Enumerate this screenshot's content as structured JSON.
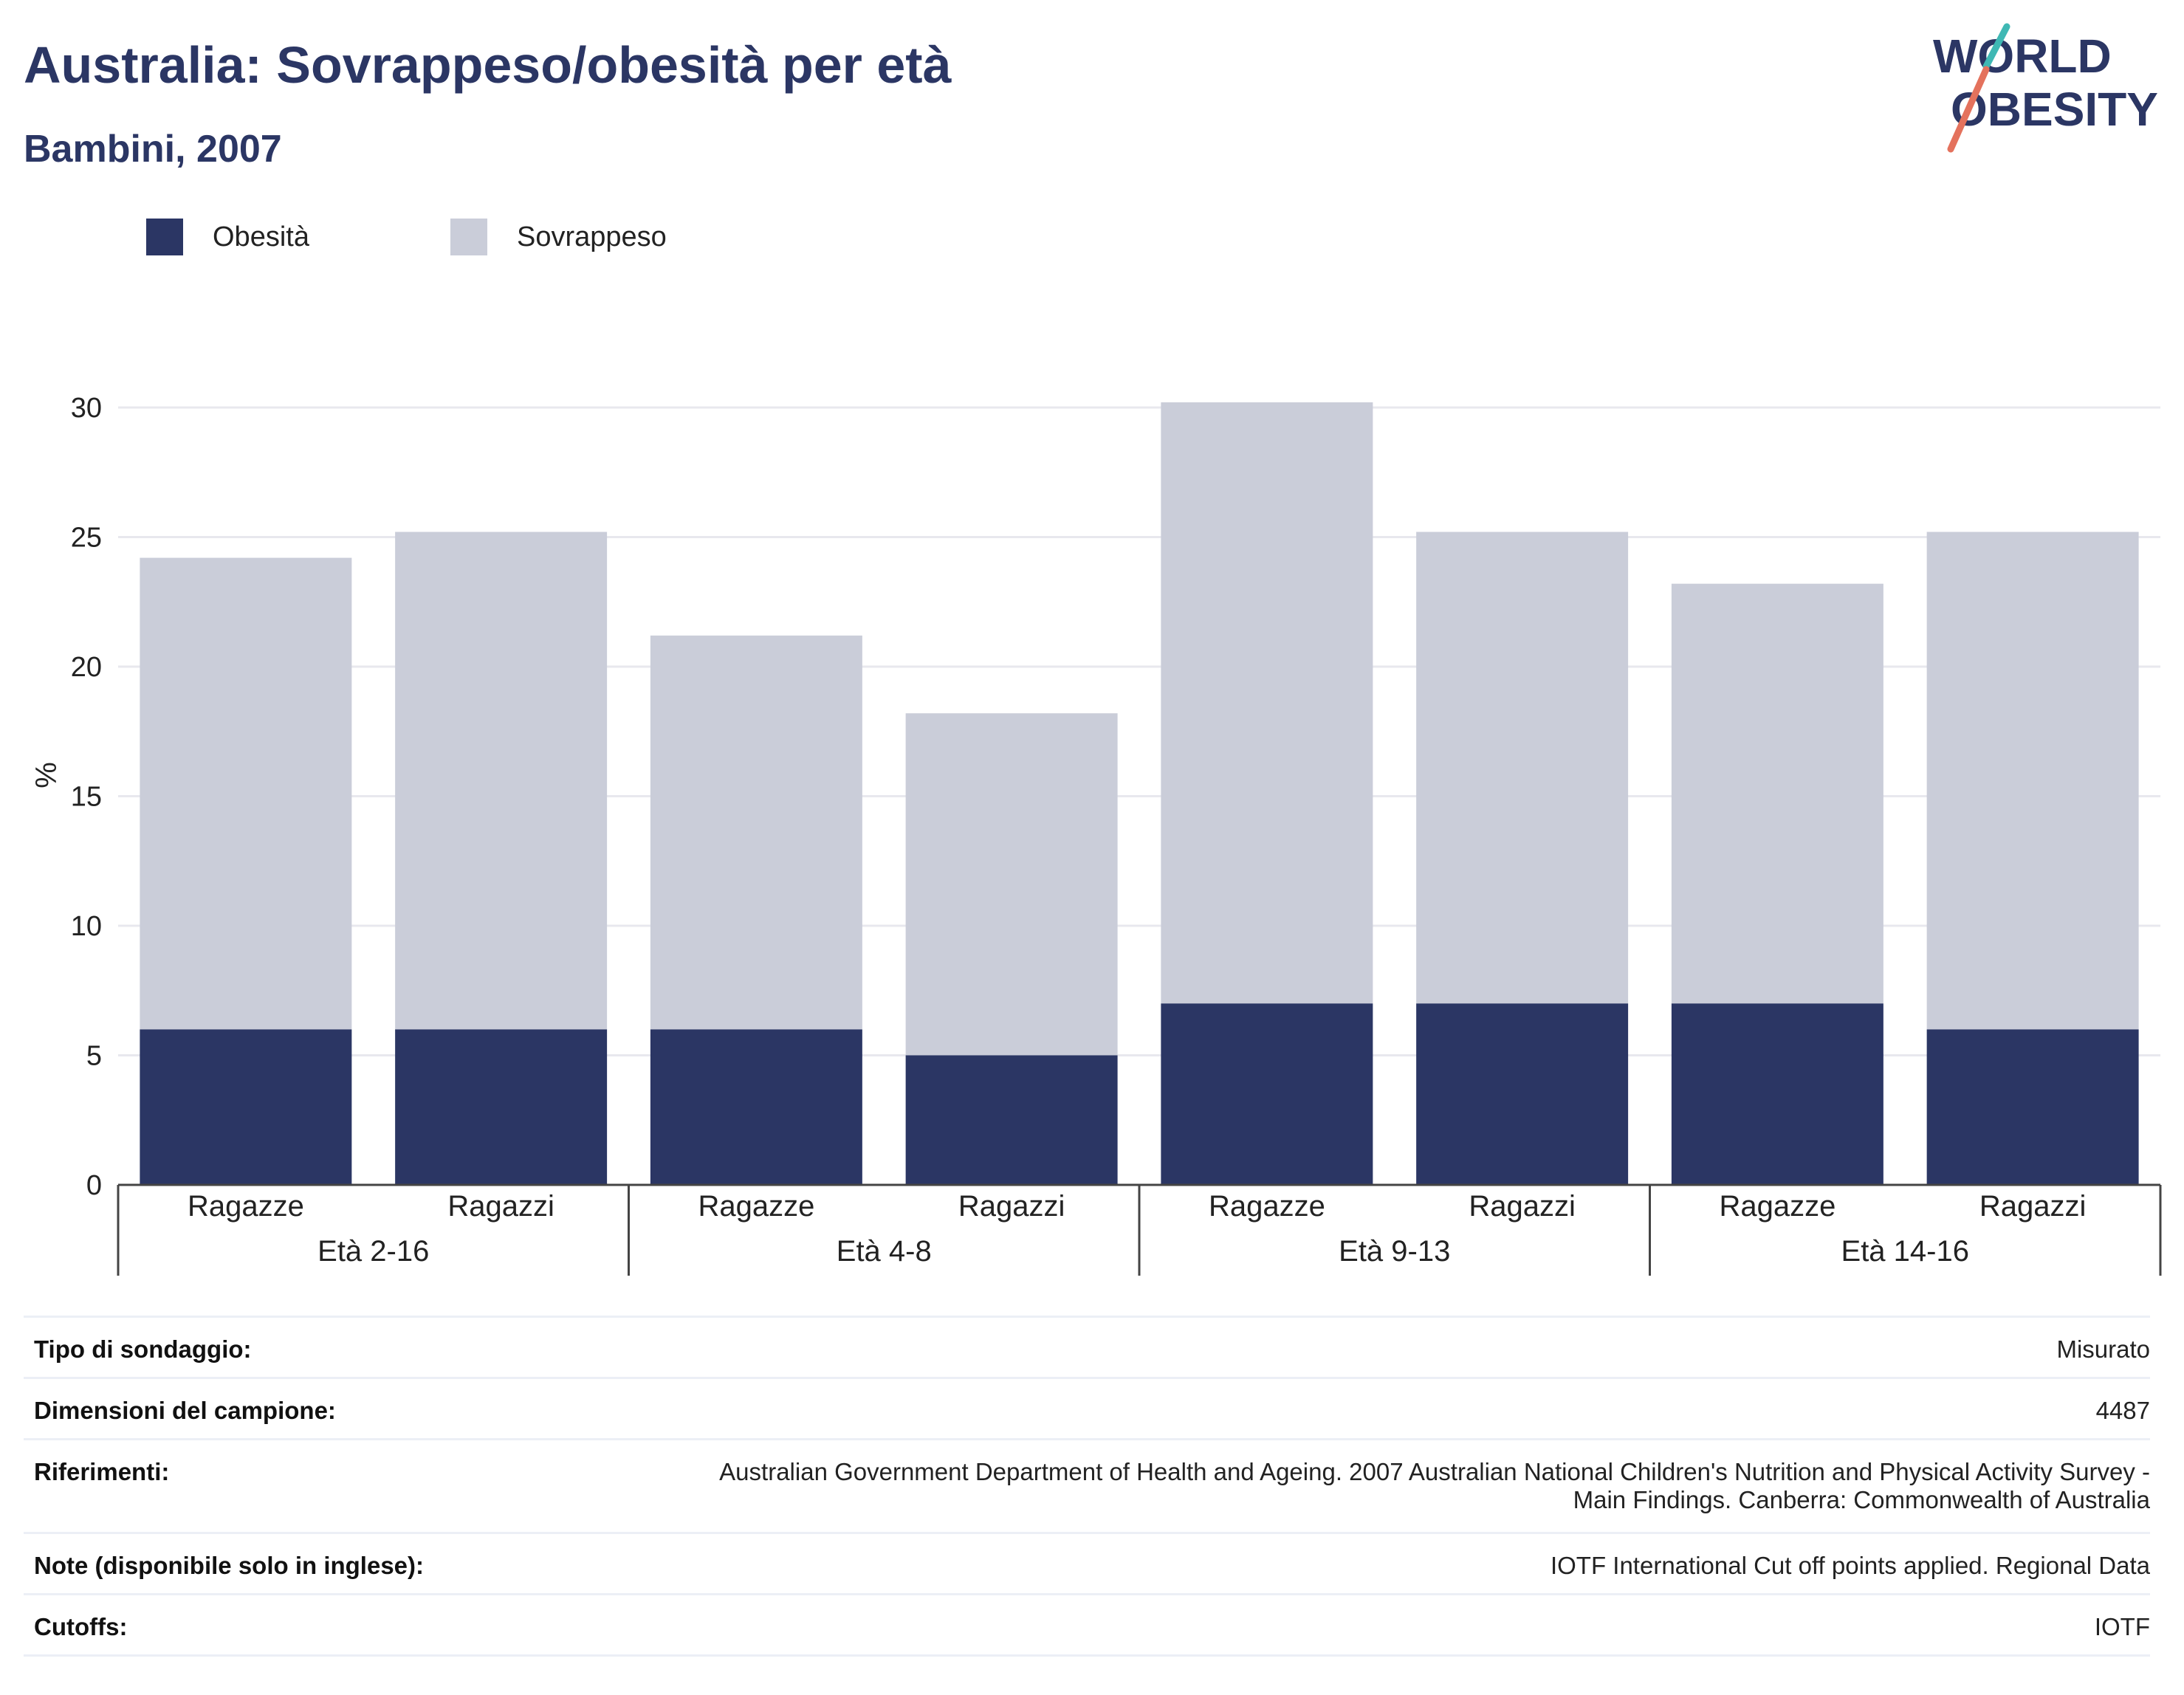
{
  "header": {
    "title": "Australia: Sovrappeso/obesità per età",
    "subtitle": "Bambini, 2007"
  },
  "logo": {
    "line1": "WORLD",
    "line2": "OBESITY",
    "colors": {
      "text": "#2b3664",
      "slash_teal": "#3fb8b4",
      "slash_coral": "#e4725d"
    }
  },
  "colors": {
    "obesity": "#2b3664",
    "overweight": "#cacdd9",
    "grid": "#e8e8ee",
    "axis": "#444444"
  },
  "legend": [
    {
      "label": "Obesità",
      "color": "#2b3664"
    },
    {
      "label": "Sovrappeso",
      "color": "#cacdd9"
    }
  ],
  "chart_data": {
    "type": "bar",
    "stacked": true,
    "ylabel": "%",
    "ylim": [
      0,
      30
    ],
    "yticks": [
      0,
      5,
      10,
      15,
      20,
      25,
      30
    ],
    "grid": true,
    "legend_position": "top-left",
    "groups": [
      {
        "label": "Età 2-16",
        "categories": [
          "Ragazze",
          "Ragazzi"
        ]
      },
      {
        "label": "Età 4-8",
        "categories": [
          "Ragazze",
          "Ragazzi"
        ]
      },
      {
        "label": "Età 9-13",
        "categories": [
          "Ragazze",
          "Ragazzi"
        ]
      },
      {
        "label": "Età 14-16",
        "categories": [
          "Ragazze",
          "Ragazzi"
        ]
      }
    ],
    "series": [
      {
        "name": "Obesità",
        "values": [
          6,
          6,
          6,
          5,
          7,
          7,
          7,
          6
        ]
      },
      {
        "name": "Sovrappeso",
        "values": [
          18.2,
          19.2,
          15.2,
          13.2,
          23.2,
          18.2,
          16.2,
          19.2
        ]
      }
    ]
  },
  "info": [
    {
      "key": "Tipo di sondaggio:",
      "value": "Misurato"
    },
    {
      "key": "Dimensioni del campione:",
      "value": "4487"
    },
    {
      "key": "Riferimenti:",
      "value_lines": [
        "Australian Government Department of Health and Ageing. 2007 Australian National Children's Nutrition and Physical Activity Survey -",
        "Main Findings. Canberra: Commonwealth of Australia"
      ]
    },
    {
      "key": "Note (disponibile solo in inglese):",
      "value": "IOTF International Cut off points applied. Regional Data"
    },
    {
      "key": "Cutoffs:",
      "value": "IOTF"
    }
  ]
}
